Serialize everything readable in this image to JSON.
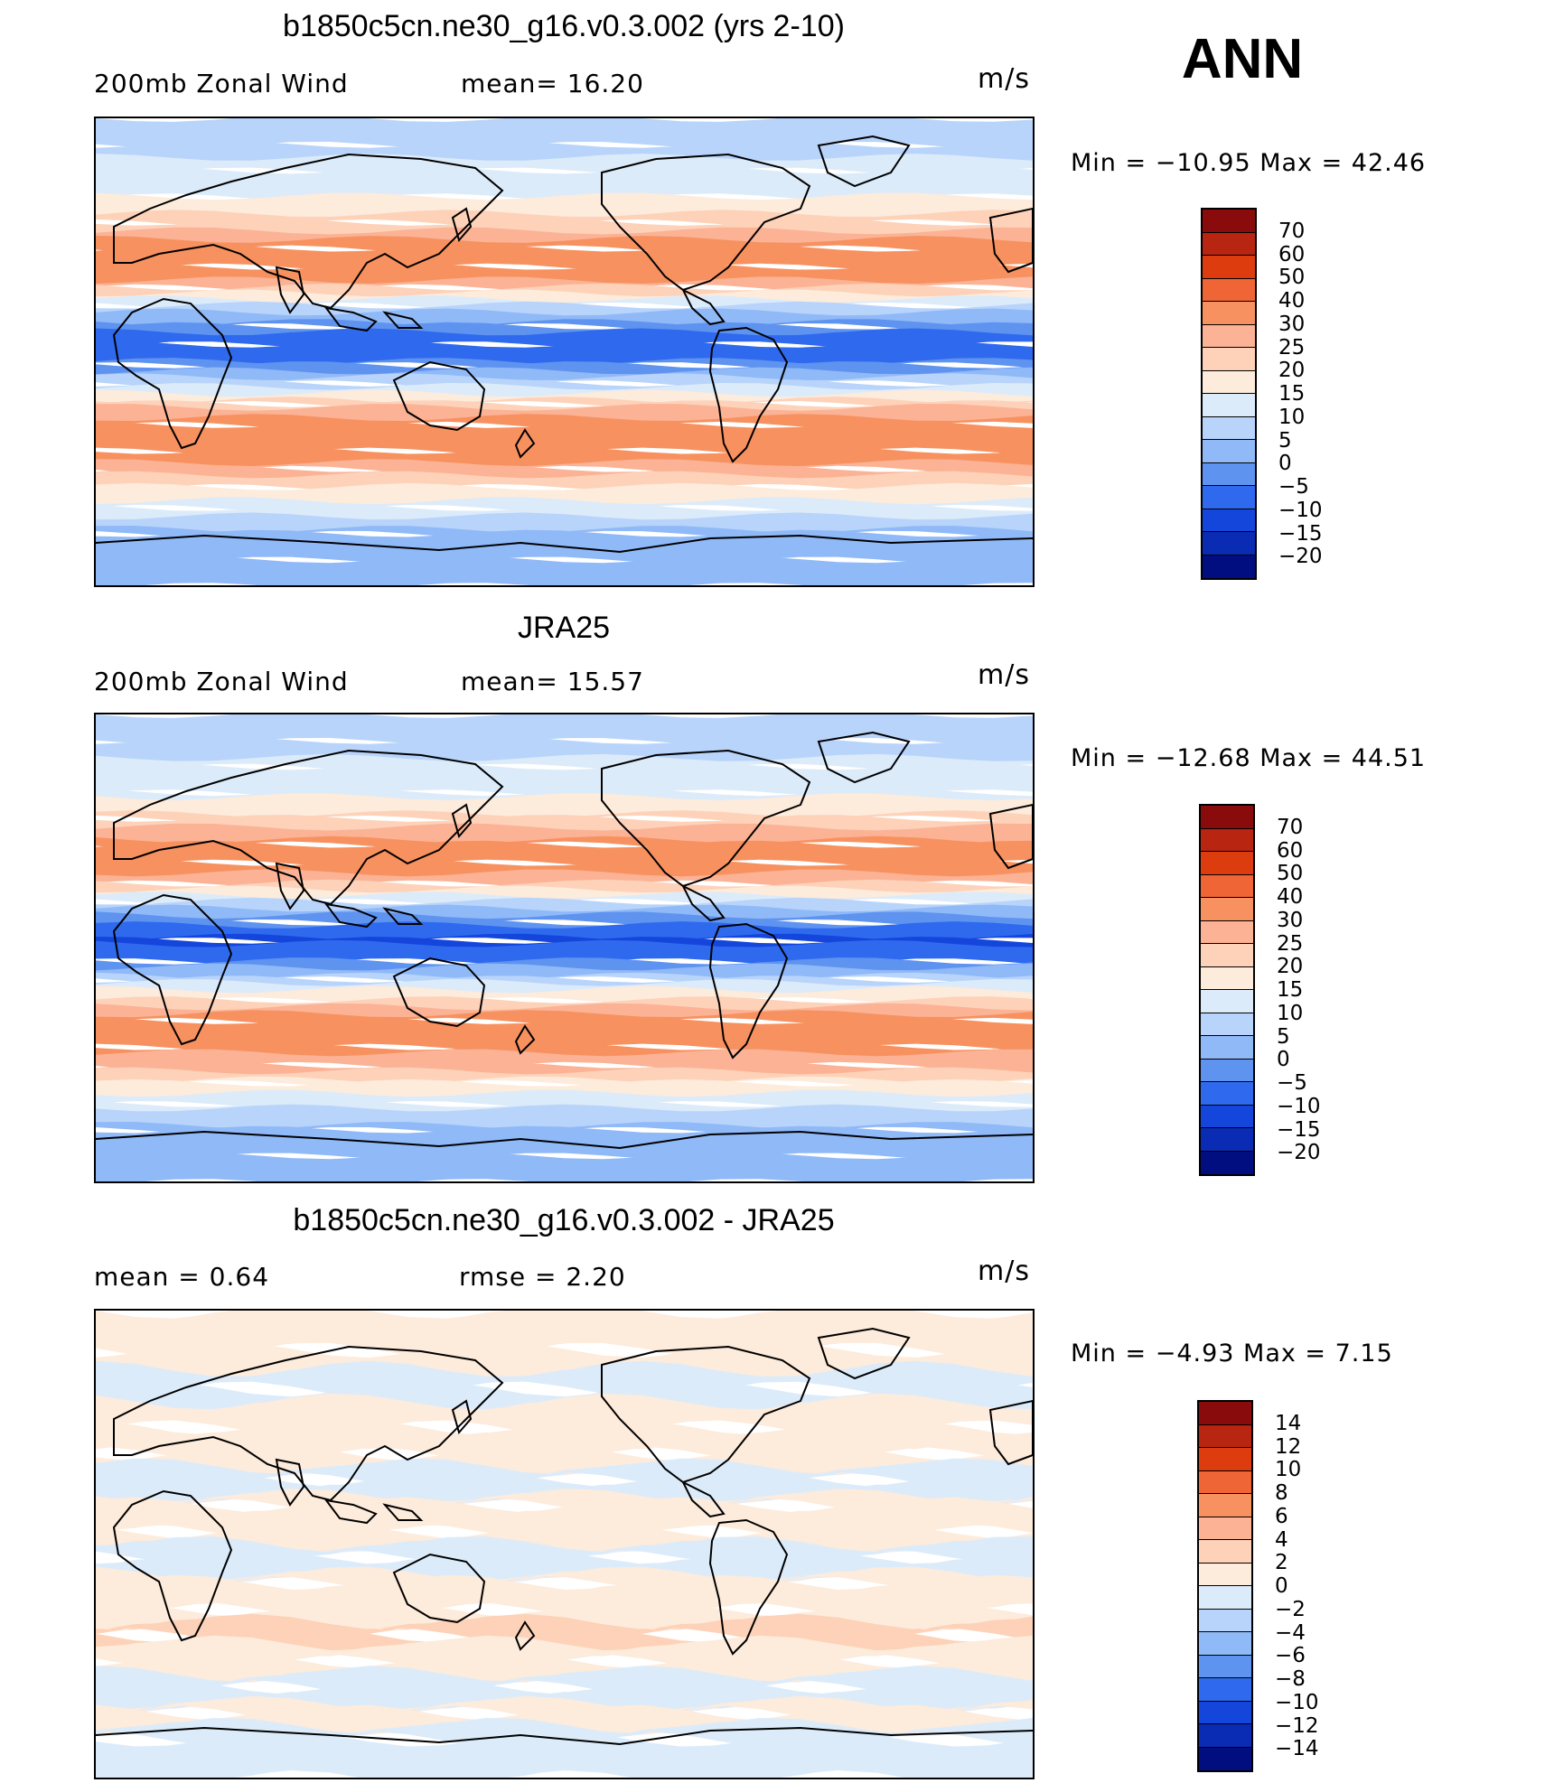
{
  "season": "ANN",
  "panels": [
    {
      "title": "b1850c5cn.ne30_g16.v0.3.002 (yrs 2-10)",
      "left_info": "200mb  Zonal  Wind",
      "mid_info": "mean=   16.20",
      "units": "m/s",
      "minmax": "Min  =  −10.95  Max  =    42.46",
      "kind": "abs"
    },
    {
      "title": "JRA25",
      "left_info": "200mb  Zonal  Wind",
      "mid_info": "mean=   15.57",
      "units": "m/s",
      "minmax": "Min  =  −12.68  Max  =    44.51",
      "kind": "abs"
    },
    {
      "title": "b1850c5cn.ne30_g16.v0.3.002 - JRA25",
      "left_info": "mean  =      0.64",
      "mid_info": "rmse  =      2.20",
      "units": "m/s",
      "minmax": "Min  =    −4.93  Max  =      7.15",
      "kind": "diff"
    }
  ],
  "colorbars": {
    "abs": {
      "labels": [
        "70",
        "60",
        "50",
        "40",
        "30",
        "25",
        "20",
        "15",
        "10",
        "5",
        "0",
        "−5",
        "−10",
        "−15",
        "−20"
      ],
      "colors": [
        "#8a0b0b",
        "#b82510",
        "#dd3d0e",
        "#f06535",
        "#f7915f",
        "#fbb295",
        "#fdd2b8",
        "#fdebdc",
        "#dcebfa",
        "#b8d4fb",
        "#90b9f8",
        "#5f93f0",
        "#2f6aee",
        "#1546dc",
        "#0a2bb4",
        "#000e80"
      ]
    },
    "diff": {
      "labels": [
        "14",
        "12",
        "10",
        "8",
        "6",
        "4",
        "2",
        "0",
        "−2",
        "−4",
        "−6",
        "−8",
        "−10",
        "−12",
        "−14"
      ],
      "colors": [
        "#8a0b0b",
        "#b82510",
        "#dd3d0e",
        "#f06535",
        "#f7915f",
        "#fbb295",
        "#fdd2b8",
        "#fdebdc",
        "#dcebfa",
        "#b8d4fb",
        "#90b9f8",
        "#5f93f0",
        "#2f6aee",
        "#1546dc",
        "#0a2bb4",
        "#000e80"
      ]
    }
  },
  "field_bands": {
    "panel1": [
      {
        "lat": 90,
        "v": 5
      },
      {
        "lat": 80,
        "v": 8
      },
      {
        "lat": 70,
        "v": 12
      },
      {
        "lat": 60,
        "v": 15
      },
      {
        "lat": 50,
        "v": 22
      },
      {
        "lat": 40,
        "v": 33
      },
      {
        "lat": 33,
        "v": 38
      },
      {
        "lat": 25,
        "v": 26
      },
      {
        "lat": 18,
        "v": 10
      },
      {
        "lat": 10,
        "v": -3
      },
      {
        "lat": 3,
        "v": -9
      },
      {
        "lat": -5,
        "v": -4
      },
      {
        "lat": -12,
        "v": 8
      },
      {
        "lat": -20,
        "v": 22
      },
      {
        "lat": -28,
        "v": 35
      },
      {
        "lat": -38,
        "v": 34
      },
      {
        "lat": -45,
        "v": 28
      },
      {
        "lat": -52,
        "v": 20
      },
      {
        "lat": -60,
        "v": 12
      },
      {
        "lat": -70,
        "v": 4
      },
      {
        "lat": -80,
        "v": 2
      },
      {
        "lat": -90,
        "v": 0
      }
    ],
    "panel2": [
      {
        "lat": 90,
        "v": 5
      },
      {
        "lat": 80,
        "v": 8
      },
      {
        "lat": 70,
        "v": 11
      },
      {
        "lat": 60,
        "v": 14
      },
      {
        "lat": 50,
        "v": 21
      },
      {
        "lat": 40,
        "v": 32
      },
      {
        "lat": 33,
        "v": 38
      },
      {
        "lat": 25,
        "v": 24
      },
      {
        "lat": 18,
        "v": 9
      },
      {
        "lat": 10,
        "v": -4
      },
      {
        "lat": 3,
        "v": -11
      },
      {
        "lat": -5,
        "v": -5
      },
      {
        "lat": -12,
        "v": 7
      },
      {
        "lat": -20,
        "v": 21
      },
      {
        "lat": -28,
        "v": 33
      },
      {
        "lat": -38,
        "v": 32
      },
      {
        "lat": -45,
        "v": 27
      },
      {
        "lat": -52,
        "v": 19
      },
      {
        "lat": -60,
        "v": 11
      },
      {
        "lat": -70,
        "v": 3
      },
      {
        "lat": -80,
        "v": 1
      },
      {
        "lat": -90,
        "v": 0
      }
    ],
    "panel3": [
      {
        "lat": 90,
        "v": 0.5
      },
      {
        "lat": 75,
        "v": 0.8
      },
      {
        "lat": 60,
        "v": -1
      },
      {
        "lat": 45,
        "v": 1.5
      },
      {
        "lat": 35,
        "v": 1.2
      },
      {
        "lat": 25,
        "v": -1.5
      },
      {
        "lat": 15,
        "v": 0.8
      },
      {
        "lat": 5,
        "v": 1.5
      },
      {
        "lat": -5,
        "v": -1.2
      },
      {
        "lat": -15,
        "v": 0.6
      },
      {
        "lat": -25,
        "v": 1.5
      },
      {
        "lat": -35,
        "v": 2.5
      },
      {
        "lat": -45,
        "v": 1.0
      },
      {
        "lat": -55,
        "v": -1.2
      },
      {
        "lat": -65,
        "v": 0.8
      },
      {
        "lat": -75,
        "v": -1.0
      },
      {
        "lat": -90,
        "v": -0.5
      }
    ]
  }
}
